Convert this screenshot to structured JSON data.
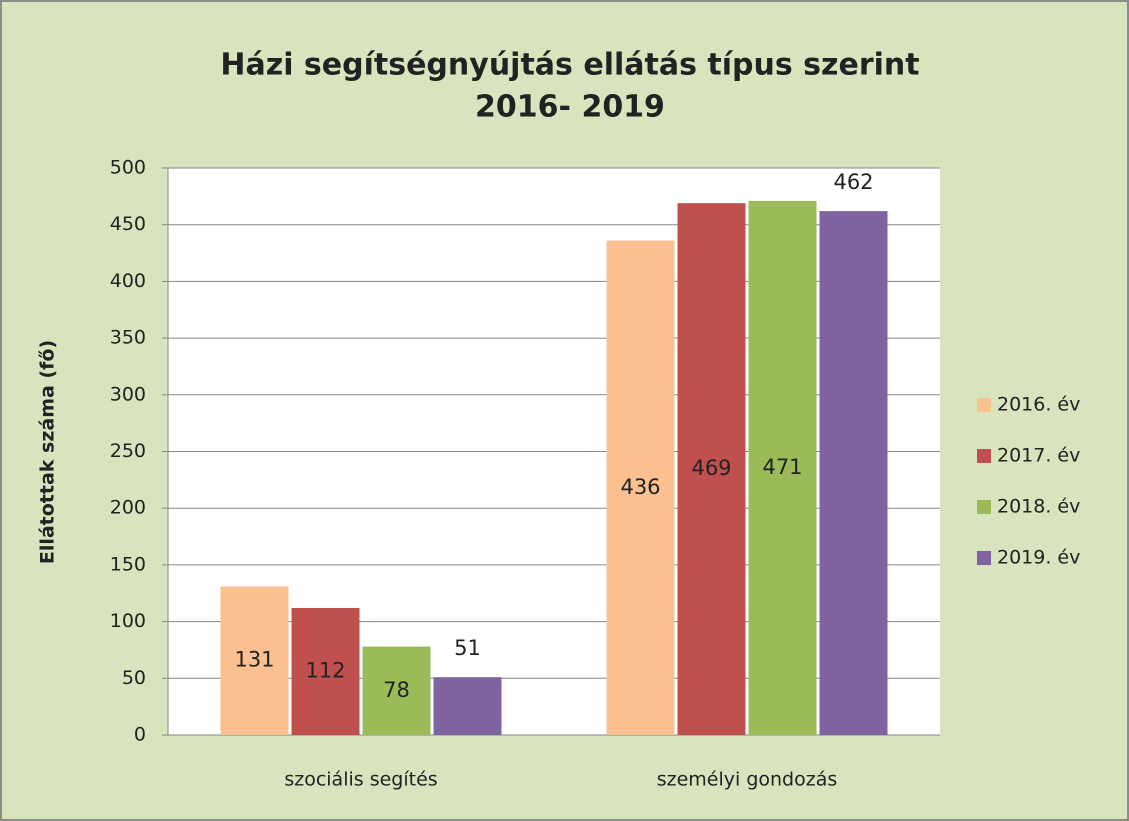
{
  "chart_data": {
    "type": "bar",
    "title": [
      "Házi segítségnyújtás ellátás típus szerint",
      "2016- 2019"
    ],
    "ylabel": "Ellátottak száma (fő)",
    "categories": [
      "szociális segítés",
      "személyi gondozás"
    ],
    "series": [
      {
        "name": "2016. év",
        "color": "#fac090",
        "values": [
          131,
          436
        ]
      },
      {
        "name": "2017. év",
        "color": "#c0504d",
        "values": [
          112,
          469
        ]
      },
      {
        "name": "2018. év",
        "color": "#9bbb59",
        "values": [
          78,
          471
        ]
      },
      {
        "name": "2019. év",
        "color": "#8064a2",
        "values": [
          51,
          462
        ]
      }
    ],
    "ylim": [
      0,
      500
    ],
    "yticks": [
      0,
      50,
      100,
      150,
      200,
      250,
      300,
      350,
      400,
      450,
      500
    ],
    "grid": true,
    "legend": "right"
  }
}
